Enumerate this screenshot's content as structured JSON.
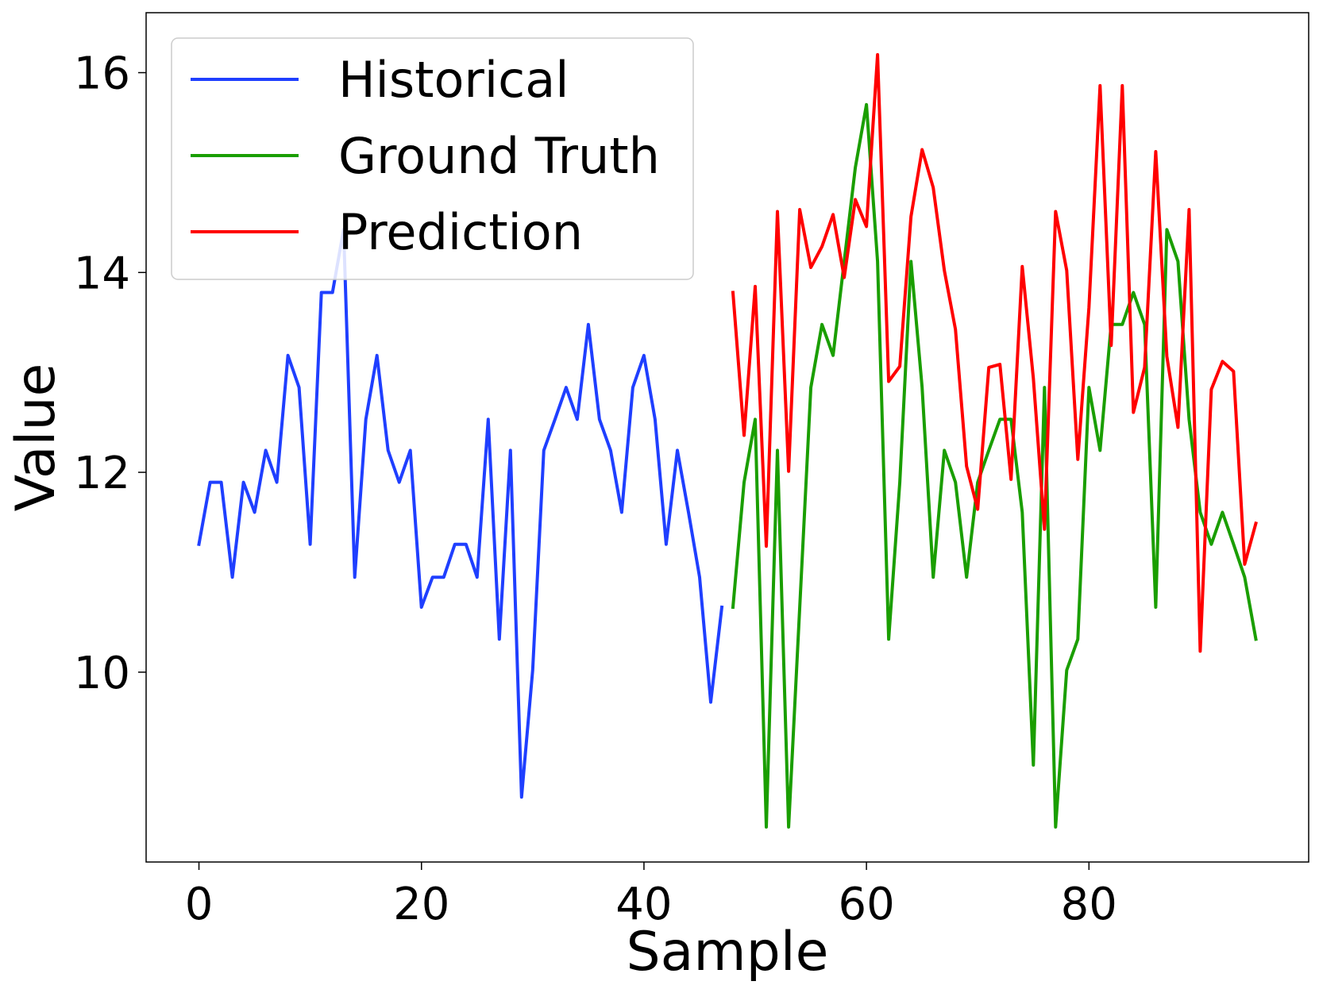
{
  "chart_data": {
    "type": "line",
    "xlabel": "Sample",
    "ylabel": "Value",
    "xlim": [
      -4.75,
      99.75
    ],
    "ylim": [
      8.1,
      16.6
    ],
    "xticks": [
      0,
      20,
      40,
      60,
      80
    ],
    "yticks": [
      10,
      12,
      14,
      16
    ],
    "grid": false,
    "legend_position": "top-left",
    "series": [
      {
        "name": "Historical",
        "color": "#1f3fff",
        "x_start": 0,
        "values": [
          11.28,
          11.9,
          11.9,
          10.95,
          11.9,
          11.6,
          12.22,
          11.9,
          13.17,
          12.85,
          11.28,
          13.8,
          13.8,
          14.43,
          10.95,
          12.53,
          13.17,
          12.22,
          11.9,
          12.22,
          10.65,
          10.95,
          10.95,
          11.28,
          11.28,
          10.95,
          12.53,
          10.33,
          12.22,
          8.75,
          10.02,
          12.22,
          12.53,
          12.85,
          12.53,
          13.48,
          12.53,
          12.22,
          11.6,
          12.85,
          13.17,
          12.53,
          11.28,
          12.22,
          11.6,
          10.95,
          9.7,
          10.65
        ]
      },
      {
        "name": "Ground Truth",
        "color": "#1a9e00",
        "x_start": 48,
        "values": [
          10.65,
          11.9,
          12.53,
          8.45,
          12.22,
          8.45,
          10.65,
          12.85,
          13.48,
          13.17,
          14.11,
          15.05,
          15.68,
          14.11,
          10.33,
          11.9,
          14.11,
          12.85,
          10.95,
          12.22,
          11.9,
          10.95,
          11.9,
          12.22,
          12.53,
          12.53,
          11.6,
          9.07,
          12.85,
          8.45,
          10.02,
          10.33,
          12.85,
          12.22,
          13.48,
          13.48,
          13.8,
          13.48,
          10.65,
          14.43,
          14.11,
          12.53,
          11.6,
          11.28,
          11.6,
          11.28,
          10.95,
          10.33
        ]
      },
      {
        "name": "Prediction",
        "color": "#ff0000",
        "x_start": 48,
        "values": [
          13.8,
          12.37,
          13.86,
          11.26,
          14.61,
          12.01,
          14.63,
          14.05,
          14.26,
          14.58,
          13.95,
          14.73,
          14.46,
          16.18,
          12.91,
          13.06,
          14.56,
          15.23,
          14.85,
          14.02,
          13.43,
          12.06,
          11.63,
          13.05,
          13.08,
          11.93,
          14.06,
          12.94,
          11.43,
          14.61,
          14.02,
          12.13,
          13.65,
          15.87,
          13.27,
          15.87,
          12.6,
          13.05,
          15.21,
          13.16,
          12.45,
          14.63,
          10.21,
          12.83,
          13.11,
          13.01,
          11.08,
          11.49
        ]
      }
    ]
  }
}
